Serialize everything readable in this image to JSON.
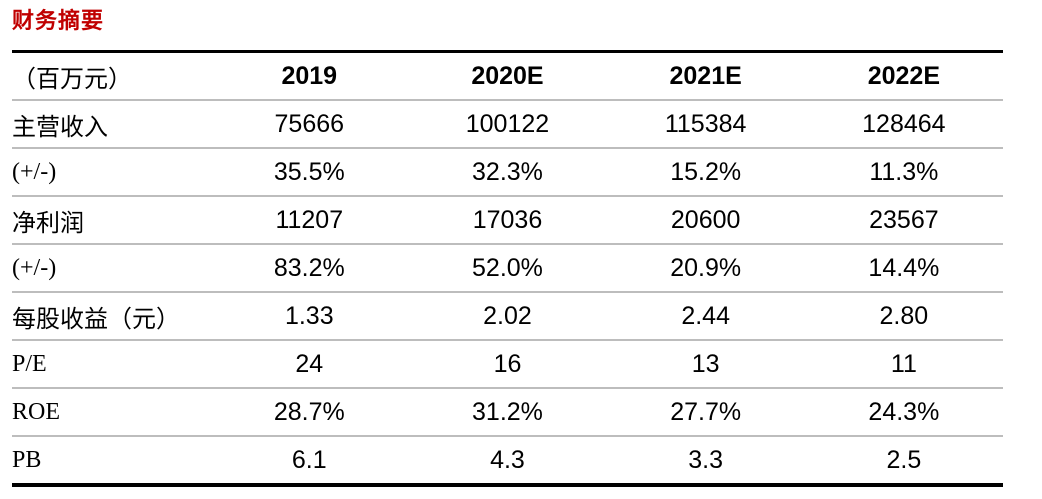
{
  "title": "财务摘要",
  "table": {
    "unit_header": "（百万元）",
    "columns": [
      "2019",
      "2020E",
      "2021E",
      "2022E"
    ],
    "rows": [
      {
        "label": "主营收入",
        "values": [
          "75666",
          "100122",
          "115384",
          "128464"
        ]
      },
      {
        "label": "(+/-)",
        "values": [
          "35.5%",
          "32.3%",
          "15.2%",
          "11.3%"
        ]
      },
      {
        "label": "净利润",
        "values": [
          "11207",
          "17036",
          "20600",
          "23567"
        ]
      },
      {
        "label": "(+/-)",
        "values": [
          "83.2%",
          "52.0%",
          "20.9%",
          "14.4%"
        ]
      },
      {
        "label": "每股收益（元）",
        "values": [
          "1.33",
          "2.02",
          "2.44",
          "2.80"
        ]
      },
      {
        "label": "P/E",
        "values": [
          "24",
          "16",
          "13",
          "11"
        ]
      },
      {
        "label": "ROE",
        "values": [
          "28.7%",
          "31.2%",
          "27.7%",
          "24.3%"
        ]
      },
      {
        "label": "PB",
        "values": [
          "6.1",
          "4.3",
          "3.3",
          "2.5"
        ]
      }
    ]
  },
  "colors": {
    "title_red": "#C00000",
    "heavy_rule": "#000000",
    "light_rule": "#BDBDBD",
    "text": "#000000",
    "background": "#FFFFFF"
  }
}
